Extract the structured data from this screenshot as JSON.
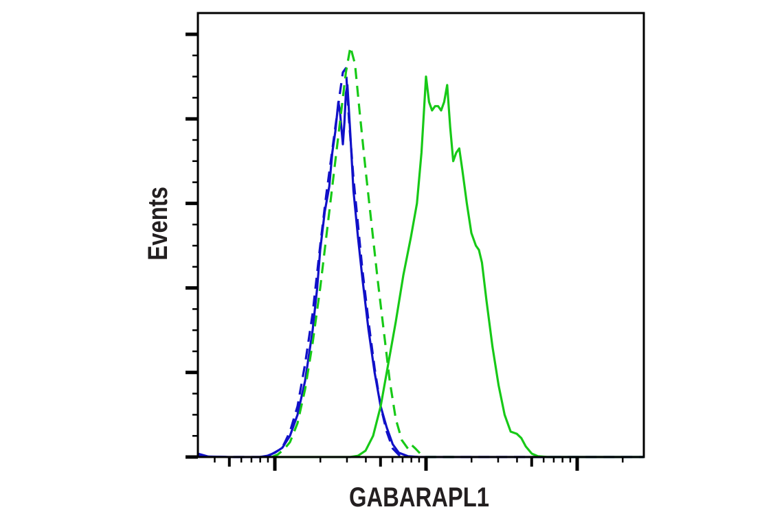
{
  "chart_data": {
    "type": "line",
    "title": "",
    "xlabel": "GABARAPL1",
    "ylabel": "Events",
    "x_scale": "log",
    "x_decades_visible": 3,
    "x_range_log10": [
      1.49,
      4.44
    ],
    "ylim": [
      0,
      100
    ],
    "y_tick_labels": [],
    "x_tick_labels": [],
    "grid": false,
    "legend": null,
    "colors": {
      "blue": "#1010c8",
      "green": "#17c917",
      "axis": "#000000",
      "text": "#231f20"
    },
    "series": [
      {
        "name": "blue-solid",
        "color": "#1010c8",
        "dash": "solid",
        "points": [
          [
            1.49,
            0.8
          ],
          [
            1.52,
            0.5
          ],
          [
            1.56,
            0.1
          ],
          [
            1.7,
            0
          ],
          [
            1.9,
            0
          ],
          [
            1.95,
            0.3
          ],
          [
            2.0,
            1.0
          ],
          [
            2.05,
            2.2
          ],
          [
            2.1,
            5
          ],
          [
            2.15,
            10
          ],
          [
            2.2,
            18
          ],
          [
            2.25,
            30
          ],
          [
            2.28,
            40
          ],
          [
            2.3,
            49
          ],
          [
            2.33,
            58
          ],
          [
            2.36,
            64
          ],
          [
            2.38,
            72
          ],
          [
            2.4,
            77
          ],
          [
            2.42,
            84
          ],
          [
            2.43,
            82
          ],
          [
            2.45,
            74
          ],
          [
            2.46,
            79
          ],
          [
            2.47,
            86
          ],
          [
            2.48,
            88
          ],
          [
            2.5,
            76
          ],
          [
            2.52,
            63
          ],
          [
            2.55,
            52
          ],
          [
            2.58,
            42
          ],
          [
            2.62,
            30
          ],
          [
            2.66,
            20
          ],
          [
            2.7,
            12
          ],
          [
            2.74,
            7
          ],
          [
            2.78,
            3
          ],
          [
            2.82,
            1
          ],
          [
            2.88,
            0.2
          ],
          [
            2.95,
            0
          ],
          [
            3.5,
            0
          ],
          [
            4.0,
            0
          ],
          [
            4.44,
            0
          ]
        ]
      },
      {
        "name": "blue-dashed",
        "color": "#1010c8",
        "dash": "dashed",
        "points": [
          [
            1.49,
            0.5
          ],
          [
            1.55,
            0.1
          ],
          [
            1.7,
            0
          ],
          [
            1.92,
            0
          ],
          [
            1.97,
            0.5
          ],
          [
            2.02,
            1.5
          ],
          [
            2.06,
            3
          ],
          [
            2.1,
            6
          ],
          [
            2.15,
            12
          ],
          [
            2.2,
            22
          ],
          [
            2.25,
            34
          ],
          [
            2.3,
            50
          ],
          [
            2.34,
            62
          ],
          [
            2.37,
            70
          ],
          [
            2.4,
            78
          ],
          [
            2.43,
            86
          ],
          [
            2.45,
            91
          ],
          [
            2.47,
            92
          ],
          [
            2.49,
            80
          ],
          [
            2.52,
            66
          ],
          [
            2.55,
            55
          ],
          [
            2.58,
            44
          ],
          [
            2.62,
            32
          ],
          [
            2.66,
            21
          ],
          [
            2.7,
            12
          ],
          [
            2.74,
            6
          ],
          [
            2.78,
            2
          ],
          [
            2.82,
            0.5
          ],
          [
            2.9,
            0
          ],
          [
            4.44,
            0
          ]
        ]
      },
      {
        "name": "green-dashed",
        "color": "#17c917",
        "dash": "dashed",
        "points": [
          [
            1.98,
            0
          ],
          [
            2.02,
            0.6
          ],
          [
            2.06,
            1.8
          ],
          [
            2.1,
            3.5
          ],
          [
            2.15,
            8
          ],
          [
            2.2,
            16
          ],
          [
            2.25,
            27
          ],
          [
            2.3,
            40
          ],
          [
            2.35,
            55
          ],
          [
            2.4,
            70
          ],
          [
            2.44,
            82
          ],
          [
            2.47,
            91
          ],
          [
            2.5,
            97
          ],
          [
            2.53,
            93
          ],
          [
            2.56,
            82
          ],
          [
            2.6,
            68
          ],
          [
            2.64,
            55
          ],
          [
            2.68,
            42
          ],
          [
            2.72,
            30
          ],
          [
            2.76,
            18
          ],
          [
            2.8,
            9
          ],
          [
            2.84,
            4
          ],
          [
            2.88,
            2
          ],
          [
            2.9,
            3
          ],
          [
            2.93,
            2
          ],
          [
            2.97,
            0.5
          ],
          [
            3.0,
            0
          ],
          [
            3.2,
            0
          ]
        ]
      },
      {
        "name": "green-solid",
        "color": "#17c917",
        "dash": "solid",
        "points": [
          [
            2.0,
            0
          ],
          [
            2.5,
            0
          ],
          [
            2.55,
            0.3
          ],
          [
            2.6,
            1.5
          ],
          [
            2.65,
            5
          ],
          [
            2.7,
            12
          ],
          [
            2.75,
            22
          ],
          [
            2.8,
            32
          ],
          [
            2.85,
            43
          ],
          [
            2.9,
            52
          ],
          [
            2.94,
            60
          ],
          [
            2.97,
            72
          ],
          [
            2.99,
            84
          ],
          [
            3.0,
            90
          ],
          [
            3.02,
            84
          ],
          [
            3.04,
            82
          ],
          [
            3.06,
            83
          ],
          [
            3.08,
            83
          ],
          [
            3.1,
            82
          ],
          [
            3.12,
            84
          ],
          [
            3.14,
            88
          ],
          [
            3.16,
            78
          ],
          [
            3.18,
            70
          ],
          [
            3.2,
            72
          ],
          [
            3.22,
            73
          ],
          [
            3.24,
            68
          ],
          [
            3.27,
            60
          ],
          [
            3.3,
            53
          ],
          [
            3.33,
            50
          ],
          [
            3.35,
            49
          ],
          [
            3.37,
            46
          ],
          [
            3.4,
            37
          ],
          [
            3.44,
            26
          ],
          [
            3.48,
            17
          ],
          [
            3.52,
            10
          ],
          [
            3.56,
            6
          ],
          [
            3.6,
            5.5
          ],
          [
            3.63,
            4.5
          ],
          [
            3.66,
            2.5
          ],
          [
            3.7,
            0.8
          ],
          [
            3.74,
            0.2
          ],
          [
            3.8,
            0
          ],
          [
            4.44,
            0
          ]
        ]
      }
    ]
  },
  "axes": {
    "x_label": "GABARAPL1",
    "y_label": "Events"
  }
}
